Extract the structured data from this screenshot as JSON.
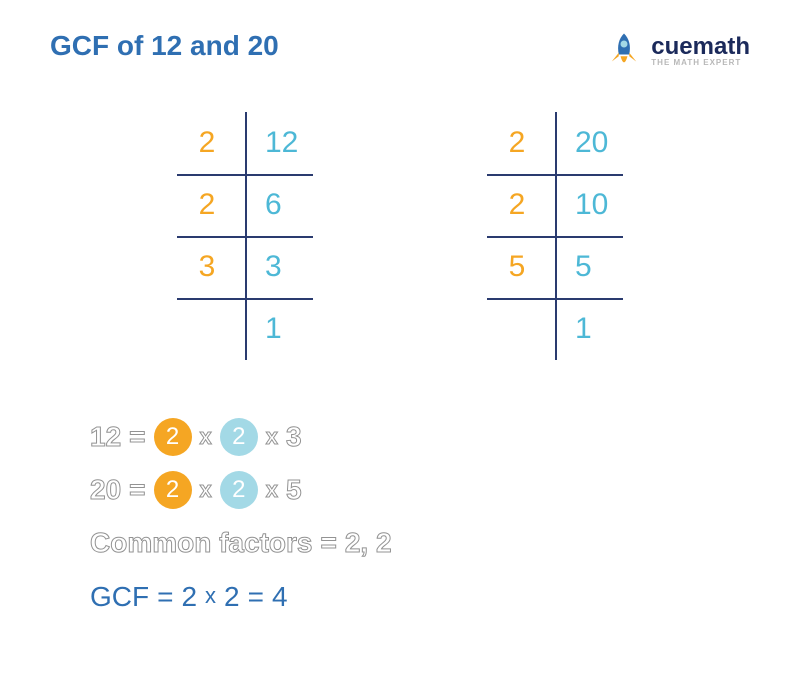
{
  "colors": {
    "title": "#2f6fb2",
    "orange": "#f5a623",
    "cyan": "#4db8d6",
    "lightcyan": "#a3d9e6",
    "navy": "#2a3b6f",
    "darkblue": "#2f6fb2",
    "gray": "#6d6d6d",
    "grayOutline": "#939393",
    "logo_navy": "#1b2a5b",
    "logo_gray": "#b8b8b8",
    "table_line": "#2a3b6f"
  },
  "title": "GCF of 12 and 20",
  "logo": {
    "brand": "cuemath",
    "tagline": "THE MATH EXPERT"
  },
  "table1": {
    "rows": [
      {
        "factor": "2",
        "value": "12"
      },
      {
        "factor": "2",
        "value": "6"
      },
      {
        "factor": "3",
        "value": "3"
      },
      {
        "factor": "",
        "value": "1"
      }
    ]
  },
  "table2": {
    "rows": [
      {
        "factor": "2",
        "value": "20"
      },
      {
        "factor": "2",
        "value": "10"
      },
      {
        "factor": "5",
        "value": "5"
      },
      {
        "factor": "",
        "value": "1"
      }
    ]
  },
  "explanation": {
    "line1": {
      "lhs": "12",
      "eq": "=",
      "a": "2",
      "b": "2",
      "c": "3"
    },
    "line2": {
      "lhs": "20",
      "eq": "=",
      "a": "2",
      "b": "2",
      "c": "5"
    },
    "line3_label": "Common factors",
    "line3_eq": "=",
    "line3_val": "2, 2",
    "line4_label": "GCF",
    "line4_eq1": "=",
    "line4_a": "2",
    "line4_x": "x",
    "line4_b": "2",
    "line4_eq2": "=",
    "line4_result": "4"
  }
}
